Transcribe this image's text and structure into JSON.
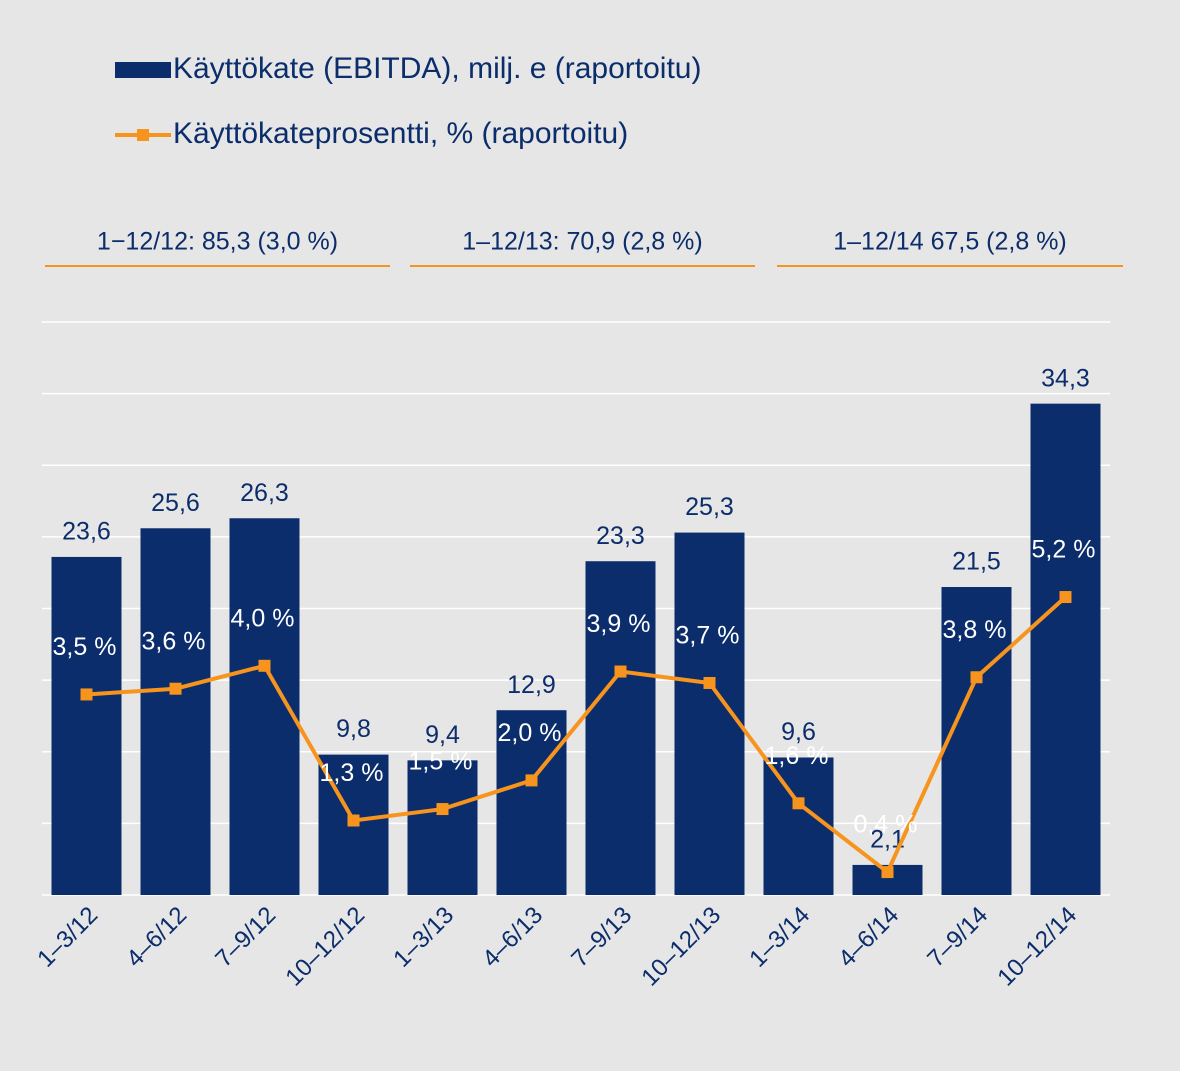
{
  "chart_data": {
    "type": "bar_line",
    "categories": [
      "1–3/12",
      "4–6/12",
      "7–9/12",
      "10–12/12",
      "1–3/13",
      "4–6/13",
      "7–9/13",
      "10–12/13",
      "1–3/14",
      "4–6/14",
      "7–9/14",
      "10–12/14"
    ],
    "series": [
      {
        "name": "Käyttökate (EBITDA), milj. e (raportoitu)",
        "type": "bar",
        "color": "#0b2d6b",
        "values": [
          23.6,
          25.6,
          26.3,
          9.8,
          9.4,
          12.9,
          23.3,
          25.3,
          9.6,
          2.1,
          21.5,
          34.3
        ],
        "value_labels": [
          "23,6",
          "25,6",
          "26,3",
          "9,8",
          "9,4",
          "12,9",
          "23,3",
          "25,3",
          "9,6",
          "2,1",
          "21,5",
          "34,3"
        ]
      },
      {
        "name": "Käyttökateprosentti, % (raportoitu)",
        "type": "line",
        "axis": "y2",
        "color": "#f7941d",
        "values": [
          3.5,
          3.6,
          4.0,
          1.3,
          1.5,
          2.0,
          3.9,
          3.7,
          1.6,
          0.4,
          3.8,
          5.2
        ],
        "value_labels": [
          "3,5 %",
          "3,6 %",
          "4,0 %",
          "1,3 %",
          "1,5 %",
          "2,0 %",
          "3,9 %",
          "3,7 %",
          "1,6 %",
          "0,4 %",
          "3,8 %",
          "5,2 %"
        ]
      }
    ],
    "annotations": [
      "1−12/12: 85,3 (3,0 %)",
      "1–12/13: 70,9 (2,8 %)",
      "1–12/14 67,5 (2,8 %)"
    ],
    "ylim": [
      0,
      40
    ],
    "yticks": [
      0,
      5,
      10,
      15,
      20,
      25,
      30,
      35,
      40
    ],
    "y2lim": [
      0,
      10
    ],
    "grid": true
  }
}
